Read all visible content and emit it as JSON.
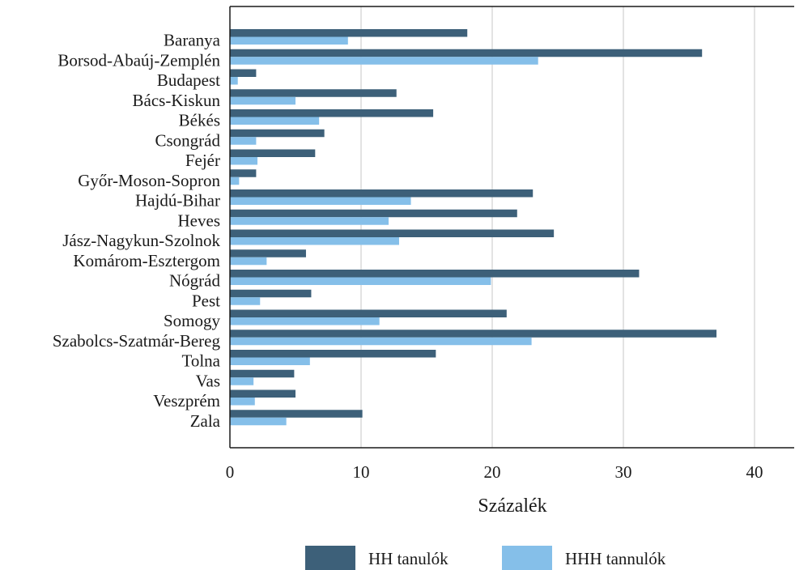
{
  "chart_data": {
    "type": "bar",
    "orientation": "horizontal",
    "categories": [
      "Baranya",
      "Borsod-Abaúj-Zemplén",
      "Budapest",
      "Bács-Kiskun",
      "Békés",
      "Csongrád",
      "Fejér",
      "Győr-Moson-Sopron",
      "Hajdú-Bihar",
      "Heves",
      "Jász-Nagykun-Szolnok",
      "Komárom-Esztergom",
      "Nógrád",
      "Pest",
      "Somogy",
      "Szabolcs-Szatmár-Bereg",
      "Tolna",
      "Vas",
      "Veszprém",
      "Zala"
    ],
    "series": [
      {
        "name": "HH tanulók",
        "color": "#3d6079",
        "values": [
          18.1,
          36.0,
          2.0,
          12.7,
          15.5,
          7.2,
          6.5,
          2.0,
          23.1,
          21.9,
          24.7,
          5.8,
          31.2,
          6.2,
          21.1,
          37.1,
          15.7,
          4.9,
          5.0,
          10.1
        ]
      },
      {
        "name": "HHH tannulók",
        "color": "#85bfe9",
        "values": [
          9.0,
          23.5,
          0.6,
          5.0,
          6.8,
          2.0,
          2.1,
          0.7,
          13.8,
          12.1,
          12.9,
          2.8,
          19.9,
          2.3,
          11.4,
          23.0,
          6.1,
          1.8,
          1.9,
          4.3
        ]
      }
    ],
    "title": "",
    "xlabel": "Százalék",
    "ylabel": "",
    "xlim": [
      0,
      43
    ],
    "xticks": [
      0,
      10,
      20,
      30,
      40
    ],
    "grid": "vertical",
    "legend_position": "bottom"
  }
}
